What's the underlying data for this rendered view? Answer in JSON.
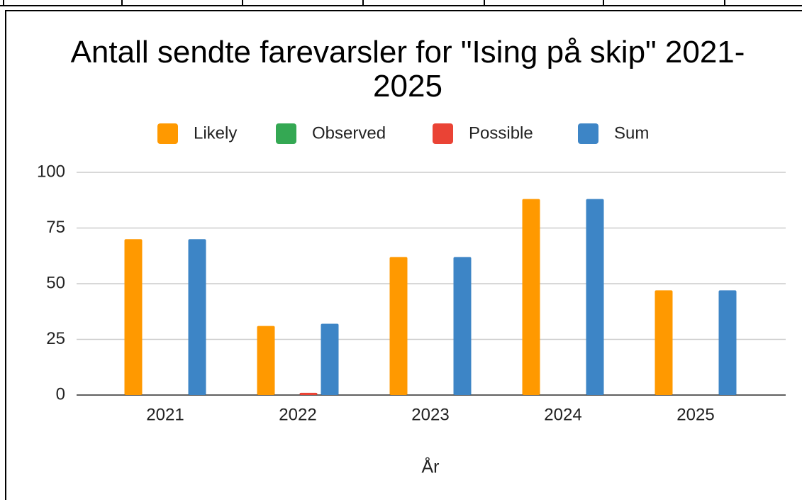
{
  "chart_data": {
    "type": "bar",
    "title": "Antall sendte farevarsler for \"Ising på skip\" 2021-2025",
    "x_label": "År",
    "categories": [
      "2021",
      "2022",
      "2023",
      "2024",
      "2025"
    ],
    "series": [
      {
        "name": "Likely",
        "color": "#ff9900",
        "values": [
          70,
          31,
          62,
          88,
          47
        ]
      },
      {
        "name": "Observed",
        "color": "#34a853",
        "values": [
          0,
          0,
          0,
          0,
          0
        ]
      },
      {
        "name": "Possible",
        "color": "#ea4335",
        "values": [
          0,
          1,
          0,
          0,
          0
        ]
      },
      {
        "name": "Sum",
        "color": "#3d85c6",
        "values": [
          70,
          32,
          62,
          88,
          47
        ]
      }
    ],
    "ylim": [
      0,
      100
    ],
    "yticks": [
      0,
      25,
      50,
      75,
      100
    ],
    "grid": true,
    "legend": "top"
  }
}
